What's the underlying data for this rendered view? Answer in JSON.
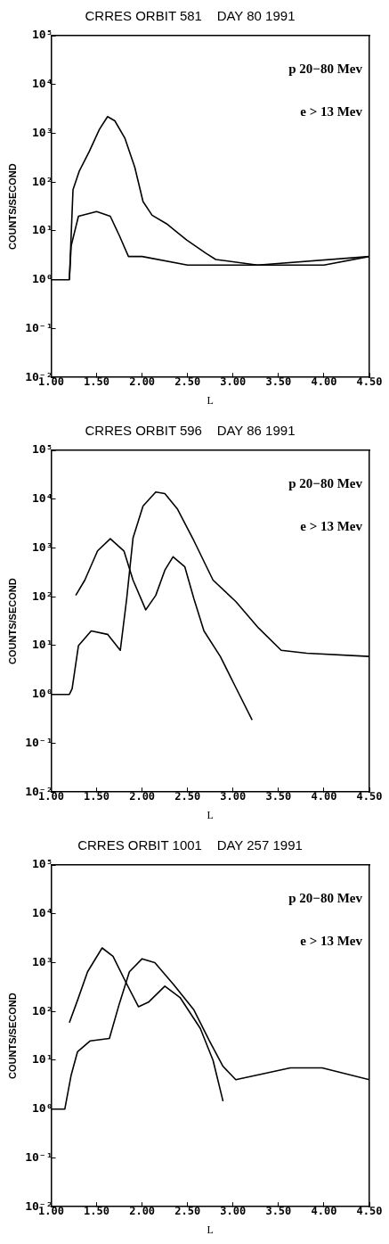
{
  "chart_data": [
    {
      "type": "line",
      "title": "CRRES ORBIT 581    DAY 80 1991",
      "xlabel": "L",
      "ylabel": "COUNTS/SECOND",
      "log": "y",
      "grid": false,
      "legend": false,
      "marker": "none",
      "line_style": "solid",
      "annotations": [
        "p 20−80 Mev",
        "e > 13 Mev"
      ],
      "xlim": [
        1,
        4.5
      ],
      "xticks": [
        {
          "value": 1,
          "label": "1.00"
        },
        {
          "value": 1.5,
          "label": "1.50"
        },
        {
          "value": 2,
          "label": "2.00"
        },
        {
          "value": 2.5,
          "label": "2.50"
        },
        {
          "value": 3,
          "label": "3.00"
        },
        {
          "value": 3.5,
          "label": "3.50"
        },
        {
          "value": 4,
          "label": "4.00"
        },
        {
          "value": 4.5,
          "label": "4.50"
        }
      ],
      "ylim": [
        0.01,
        100000
      ],
      "yticks": [
        {
          "value": 0.01,
          "label": "10⁻²"
        },
        {
          "value": 0.1,
          "label": "10⁻¹"
        },
        {
          "value": 1,
          "label": "10⁰"
        },
        {
          "value": 10,
          "label": "10¹"
        },
        {
          "value": 100,
          "label": "10²"
        },
        {
          "value": 1000,
          "label": "10³"
        },
        {
          "value": 10000,
          "label": "10⁴"
        },
        {
          "value": 100000,
          "label": "10⁵"
        }
      ],
      "series": [
        {
          "color": "#000000",
          "x": [
            1.2,
            1.24,
            1.31,
            1.42,
            1.53,
            1.62,
            1.7,
            1.81,
            1.92,
            2.01,
            2.11,
            2.27,
            2.49,
            2.7,
            2.81,
            3.27,
            4.5
          ],
          "values": [
            1,
            70,
            170,
            430,
            1200,
            2200,
            1800,
            800,
            200,
            40,
            21,
            14,
            6.5,
            3.5,
            2.6,
            2,
            3
          ]
        },
        {
          "color": "#000000",
          "x": [
            1,
            1.2,
            1.22,
            1.3,
            1.5,
            1.65,
            1.75,
            1.85,
            2,
            2.5,
            3,
            3.5,
            4,
            4.5
          ],
          "values": [
            1,
            1,
            5,
            20,
            25,
            20,
            8,
            3,
            3,
            2,
            2,
            2,
            2,
            3
          ]
        }
      ]
    },
    {
      "type": "line",
      "title": "CRRES ORBIT 596    DAY 86 1991",
      "xlabel": "L",
      "ylabel": "COUNTS/SECOND",
      "log": "y",
      "grid": false,
      "legend": false,
      "marker": "none",
      "line_style": "solid",
      "annotations": [
        "p 20−80 Mev",
        "e > 13 Mev"
      ],
      "xlim": [
        1,
        4.5
      ],
      "xticks": [
        {
          "value": 1,
          "label": "1.00"
        },
        {
          "value": 1.5,
          "label": "1.50"
        },
        {
          "value": 2,
          "label": "2.00"
        },
        {
          "value": 2.5,
          "label": "2.50"
        },
        {
          "value": 3,
          "label": "3.00"
        },
        {
          "value": 3.5,
          "label": "3.50"
        },
        {
          "value": 4,
          "label": "4.00"
        },
        {
          "value": 4.5,
          "label": "4.50"
        }
      ],
      "ylim": [
        0.01,
        100000
      ],
      "yticks": [
        {
          "value": 0.01,
          "label": "10⁻²"
        },
        {
          "value": 0.1,
          "label": "10⁻¹"
        },
        {
          "value": 1,
          "label": "10⁰"
        },
        {
          "value": 10,
          "label": "10¹"
        },
        {
          "value": 100,
          "label": "10²"
        },
        {
          "value": 1000,
          "label": "10³"
        },
        {
          "value": 10000,
          "label": "10⁴"
        },
        {
          "value": 100000,
          "label": "10⁵"
        }
      ],
      "series": [
        {
          "color": "#000000",
          "x": [
            1.27,
            1.37,
            1.51,
            1.65,
            1.8,
            1.9,
            2.04,
            2.15,
            2.25,
            2.34,
            2.47,
            2.57,
            2.68,
            2.86,
            3,
            3.21
          ],
          "values": [
            107,
            220,
            870,
            1550,
            870,
            220,
            54,
            107,
            350,
            660,
            410,
            91,
            20,
            6,
            1.8,
            0.3
          ]
        },
        {
          "color": "#000000",
          "x": [
            1,
            1.2,
            1.23,
            1.3,
            1.44,
            1.62,
            1.76,
            1.83,
            1.9,
            2.01,
            2.15,
            2.25,
            2.39,
            2.57,
            2.78,
            3.03,
            3.28,
            3.53,
            3.81,
            4.5
          ],
          "values": [
            1,
            1,
            1.3,
            10,
            20,
            17,
            8,
            90,
            1600,
            7200,
            14000,
            13000,
            6200,
            1400,
            220,
            80,
            23,
            8,
            7,
            6
          ]
        }
      ]
    },
    {
      "type": "line",
      "title": "CRRES ORBIT 1001    DAY 257 1991",
      "xlabel": "L",
      "ylabel": "COUNTS/SECOND",
      "log": "y",
      "grid": false,
      "legend": false,
      "marker": "none",
      "line_style": "solid",
      "annotations": [
        "p 20−80 Mev",
        "e > 13 Mev"
      ],
      "xlim": [
        1,
        4.5
      ],
      "xticks": [
        {
          "value": 1,
          "label": "1.00"
        },
        {
          "value": 1.5,
          "label": "1.50"
        },
        {
          "value": 2,
          "label": "2.00"
        },
        {
          "value": 2.5,
          "label": "2.50"
        },
        {
          "value": 3,
          "label": "3.00"
        },
        {
          "value": 3.5,
          "label": "3.50"
        },
        {
          "value": 4,
          "label": "4.00"
        },
        {
          "value": 4.5,
          "label": "4.50"
        }
      ],
      "ylim": [
        0.01,
        100000
      ],
      "yticks": [
        {
          "value": 0.01,
          "label": "10⁻²"
        },
        {
          "value": 0.1,
          "label": "10⁻¹"
        },
        {
          "value": 1,
          "label": "10⁰"
        },
        {
          "value": 10,
          "label": "10¹"
        },
        {
          "value": 100,
          "label": "10²"
        },
        {
          "value": 1000,
          "label": "10³"
        },
        {
          "value": 10000,
          "label": "10⁴"
        },
        {
          "value": 100000,
          "label": "10⁵"
        }
      ],
      "series": [
        {
          "color": "#000000",
          "x": [
            1.2,
            1.29,
            1.4,
            1.56,
            1.68,
            1.82,
            1.96,
            2.07,
            2.25,
            2.42,
            2.64,
            2.78,
            2.89
          ],
          "values": [
            59,
            170,
            650,
            2000,
            1350,
            400,
            125,
            155,
            330,
            190,
            45,
            10,
            1.45
          ]
        },
        {
          "color": "#000000",
          "x": [
            1,
            1.13,
            1.15,
            1.22,
            1.29,
            1.43,
            1.64,
            1.75,
            1.86,
            2,
            2.14,
            2.35,
            2.57,
            2.74,
            2.89,
            3.03,
            3.63,
            3.98,
            4.5
          ],
          "values": [
            1,
            1,
            1,
            5,
            15,
            25,
            28,
            145,
            650,
            1200,
            1000,
            350,
            107,
            25,
            7.5,
            4,
            7,
            7,
            4
          ]
        }
      ]
    }
  ]
}
